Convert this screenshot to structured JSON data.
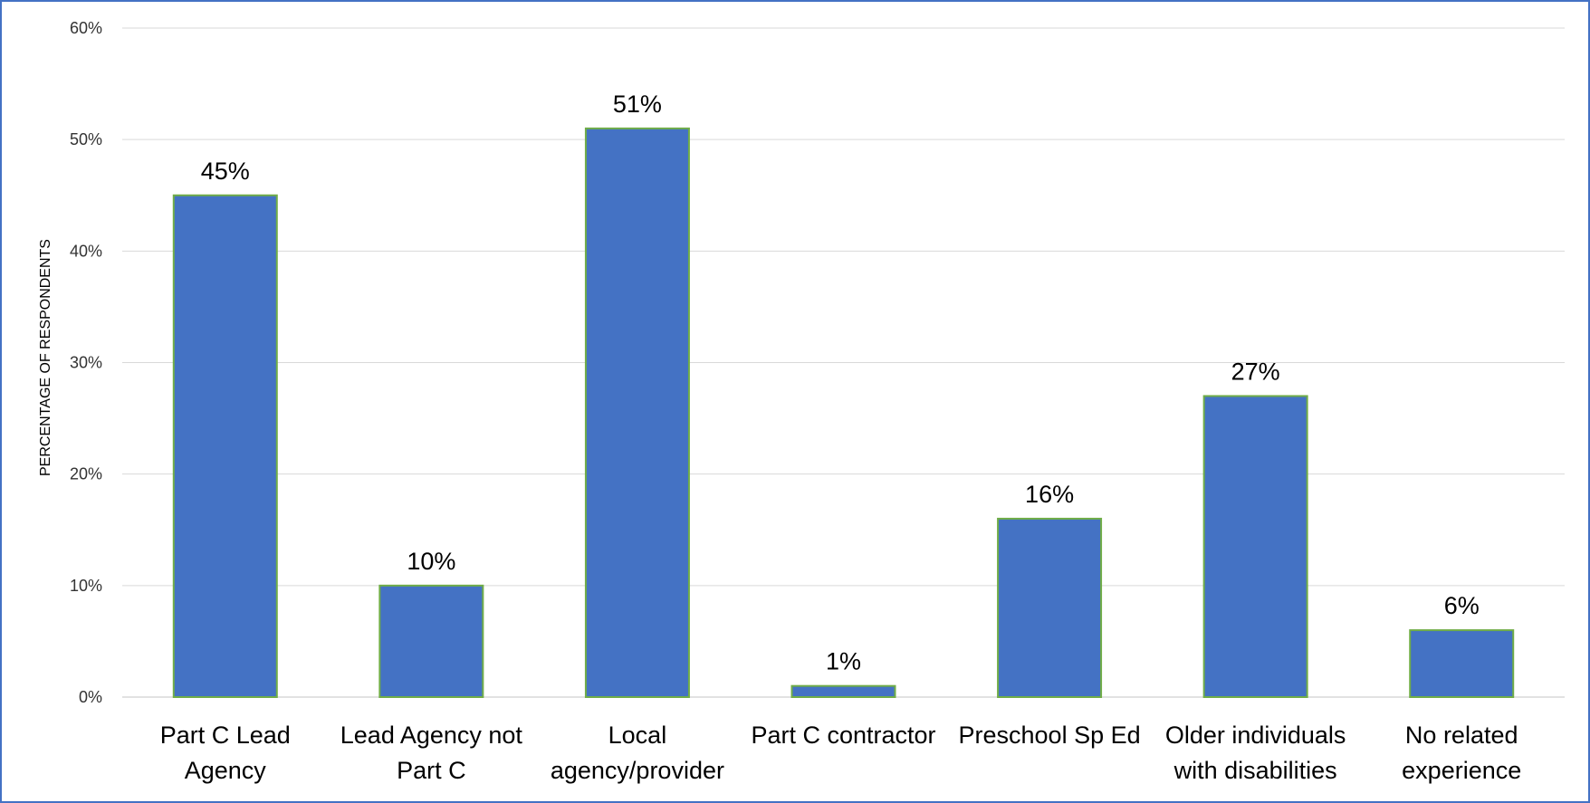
{
  "chart_data": {
    "type": "bar",
    "title": "",
    "xlabel": "",
    "ylabel": "PERCENTAGE OF RESPONDENTS",
    "ylim": [
      0,
      60
    ],
    "yticks": [
      0,
      10,
      20,
      30,
      40,
      50,
      60
    ],
    "ytick_labels": [
      "0%",
      "10%",
      "20%",
      "30%",
      "40%",
      "50%",
      "60%"
    ],
    "categories": [
      [
        "Part C Lead",
        "Agency"
      ],
      [
        "Lead Agency not",
        "Part C"
      ],
      [
        "Local",
        "agency/provider"
      ],
      [
        "Part C contractor"
      ],
      [
        "Preschool Sp Ed"
      ],
      [
        "Older individuals",
        "with disabilities"
      ],
      [
        "No related",
        "experience"
      ]
    ],
    "values": [
      45,
      10,
      51,
      1,
      16,
      27,
      6
    ],
    "data_labels": [
      "45%",
      "10%",
      "51%",
      "1%",
      "16%",
      "27%",
      "6%"
    ],
    "grid": true,
    "colors": {
      "bar_fill": "#4472C4",
      "bar_stroke": "#70AD47",
      "grid": "#D9D9D9",
      "frame": "#4472C4"
    }
  }
}
